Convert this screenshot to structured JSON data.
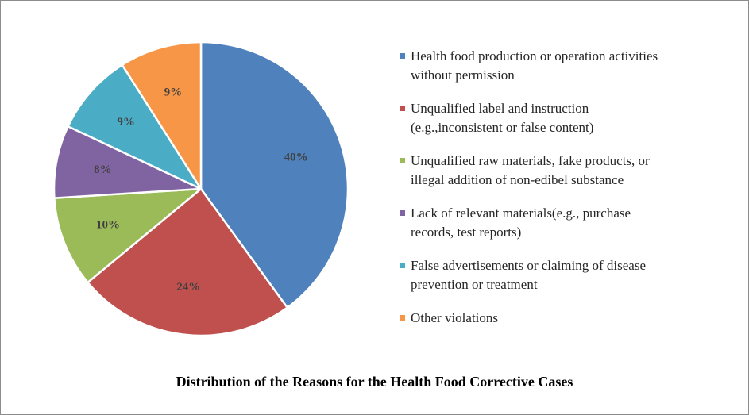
{
  "chart_data": {
    "type": "pie",
    "title": "Distribution of the Reasons for the Health Food Corrective Cases",
    "legend_position": "right",
    "slices": [
      {
        "label": "Health food production or operation activities without permission",
        "lines": [
          "Health food production or operation activities",
          "without permission"
        ],
        "value": 40,
        "display": "40%",
        "color": "#4F81BD"
      },
      {
        "label": "Unqualified label and instruction (e.g.,inconsistent or false content)",
        "lines": [
          "Unqualified label and instruction",
          "(e.g.,inconsistent or false content)"
        ],
        "value": 24,
        "display": "24%",
        "color": "#C0504D"
      },
      {
        "label": "Unqualified raw materials, fake products, or illegal addition of non-edibel substance",
        "lines": [
          "Unqualified raw materials, fake products, or",
          "illegal addition of non-edibel substance"
        ],
        "value": 10,
        "display": "10%",
        "color": "#9BBB59"
      },
      {
        "label": "Lack of relevant materials(e.g., purchase records, test reports)",
        "lines": [
          "Lack of relevant materials(e.g., purchase",
          "records, test reports)"
        ],
        "value": 8,
        "display": "8%",
        "color": "#8064A2"
      },
      {
        "label": "False advertisements or claiming of disease prevention or treatment",
        "lines": [
          "False advertisements or claiming of disease",
          "prevention or treatment"
        ],
        "value": 9,
        "display": "9%",
        "color": "#4BACC6"
      },
      {
        "label": "Other violations",
        "lines": [
          "Other violations"
        ],
        "value": 9,
        "display": "9%",
        "color": "#F79646"
      }
    ]
  }
}
